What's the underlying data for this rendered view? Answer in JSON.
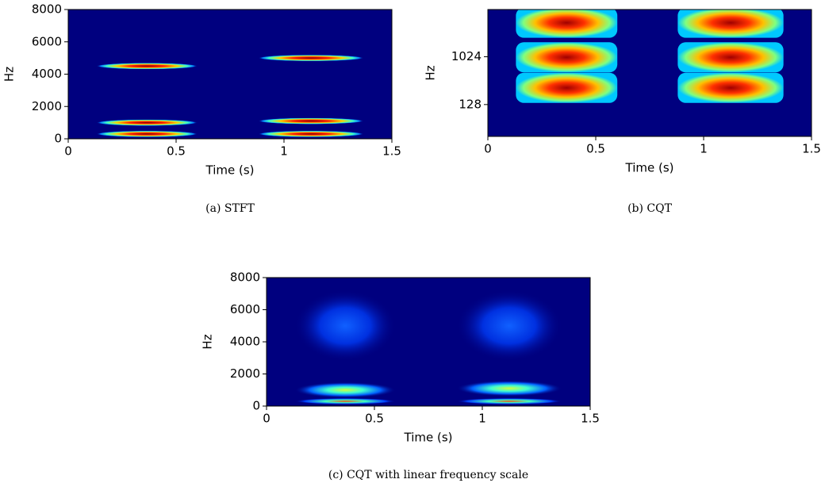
{
  "chart_data": [
    {
      "type": "spectrogram",
      "caption": "(a) STFT",
      "xlabel": "Time (s)",
      "ylabel": "Hz",
      "xlim": [
        0,
        1.5
      ],
      "xticks": [
        0,
        0.5,
        1,
        1.5
      ],
      "ylim": [
        0,
        8000
      ],
      "yticks": [
        0,
        2000,
        4000,
        6000,
        8000
      ],
      "log_y": false,
      "blobs": [
        {
          "x0": 0.13,
          "x1": 0.6,
          "y": 300
        },
        {
          "x0": 0.13,
          "x1": 0.6,
          "y": 1000
        },
        {
          "x0": 0.13,
          "x1": 0.6,
          "y": 4500
        },
        {
          "x0": 0.88,
          "x1": 1.37,
          "y": 300
        },
        {
          "x0": 0.88,
          "x1": 1.37,
          "y": 1100
        },
        {
          "x0": 0.88,
          "x1": 1.37,
          "y": 5000
        }
      ]
    },
    {
      "type": "spectrogram",
      "caption": "(b) CQT",
      "xlabel": "Time (s)",
      "ylabel": "Hz",
      "xlim": [
        0,
        1.5
      ],
      "xticks": [
        0,
        0.5,
        1,
        1.5
      ],
      "ylim": [
        32,
        8000
      ],
      "yticks": [
        128,
        1024
      ],
      "log_y": true,
      "blobs": [
        {
          "x0": 0.13,
          "x1": 0.6,
          "y": 265
        },
        {
          "x0": 0.13,
          "x1": 0.6,
          "y": 1000
        },
        {
          "x0": 0.13,
          "x1": 0.6,
          "y": 4500
        },
        {
          "x0": 0.88,
          "x1": 1.37,
          "y": 265
        },
        {
          "x0": 0.88,
          "x1": 1.37,
          "y": 1000
        },
        {
          "x0": 0.88,
          "x1": 1.37,
          "y": 4500
        }
      ]
    },
    {
      "type": "spectrogram",
      "caption": "(c) CQT with linear frequency scale",
      "xlabel": "Time (s)",
      "ylabel": "Hz",
      "xlim": [
        0,
        1.5
      ],
      "xticks": [
        0,
        0.5,
        1,
        1.5
      ],
      "ylim": [
        0,
        8000
      ],
      "yticks": [
        0,
        2000,
        4000,
        6000,
        8000
      ],
      "log_y": false,
      "blobs": [
        {
          "x0": 0.13,
          "x1": 0.6,
          "y": 300
        },
        {
          "x0": 0.13,
          "x1": 0.6,
          "y": 1000
        },
        {
          "x0": 0.13,
          "x1": 0.6,
          "y": 5000
        },
        {
          "x0": 0.88,
          "x1": 1.37,
          "y": 300
        },
        {
          "x0": 0.88,
          "x1": 1.37,
          "y": 1100
        },
        {
          "x0": 0.88,
          "x1": 1.37,
          "y": 5000
        }
      ]
    }
  ]
}
